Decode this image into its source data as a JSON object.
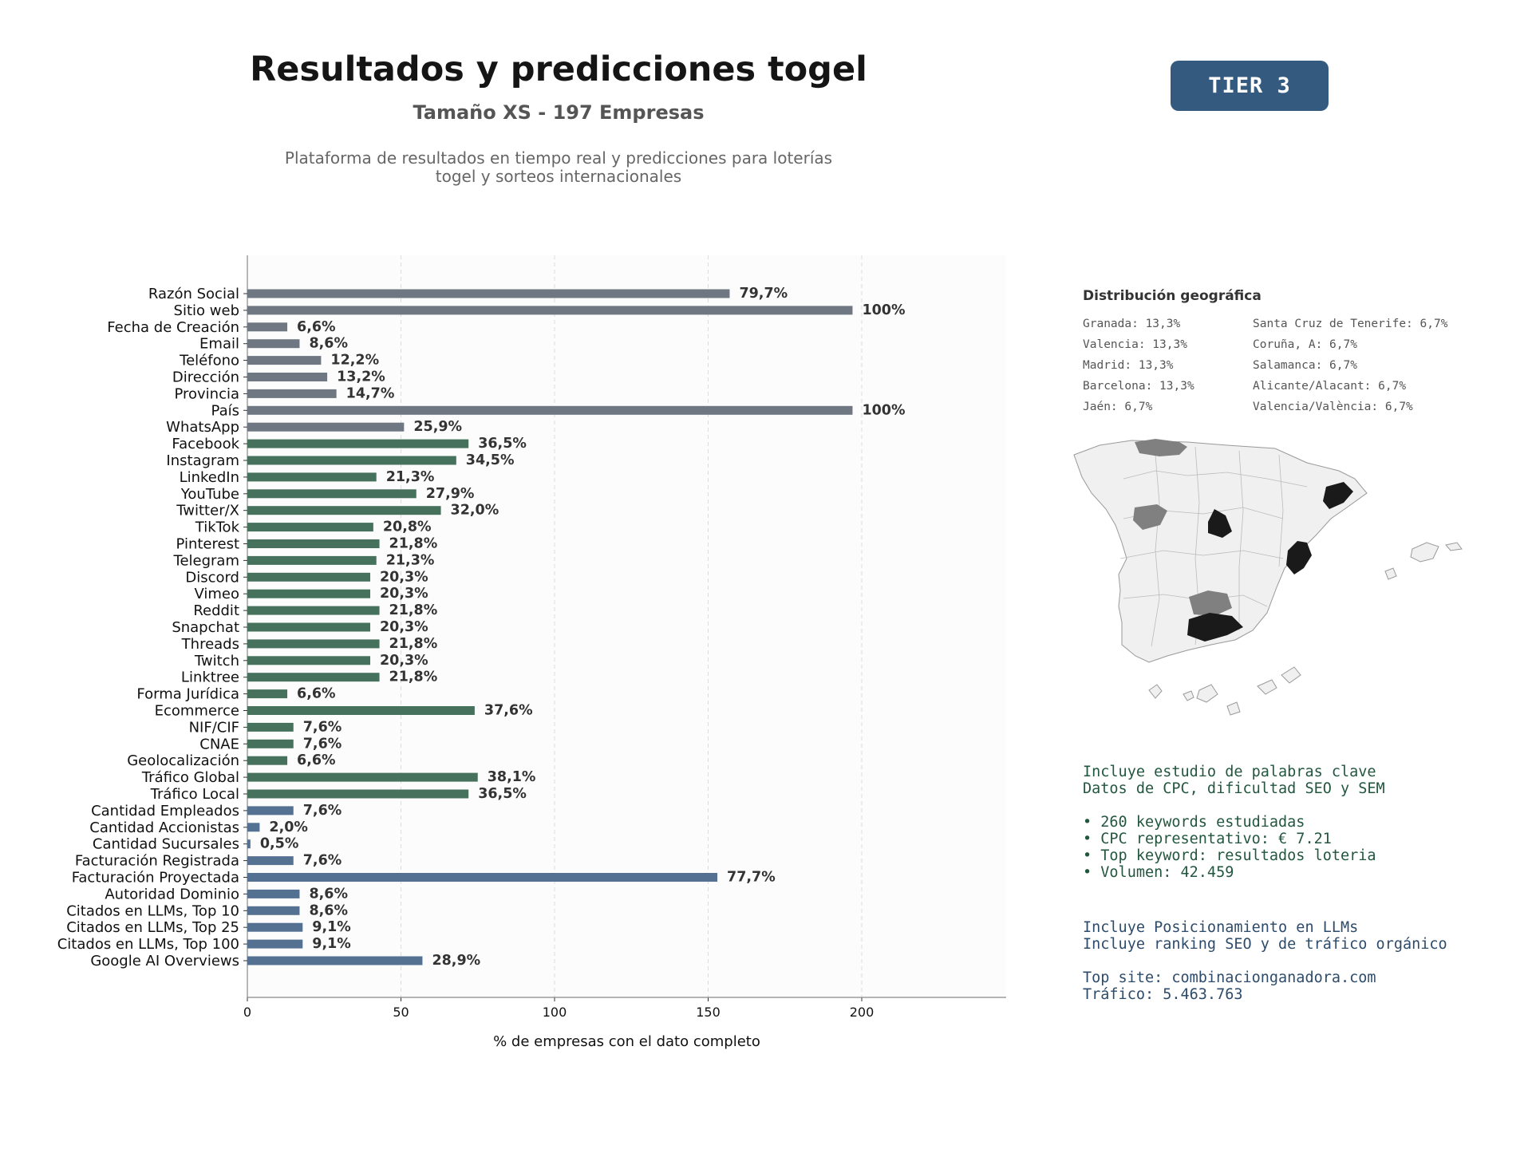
{
  "header": {
    "title": "Resultados y predicciones togel",
    "subtitle": "Tamaño XS - 197 Empresas",
    "description_line1": "Plataforma de resultados en tiempo real y predicciones para loterías",
    "description_line2": "togel y sorteos internacionales",
    "tier": "TIER 3"
  },
  "colors": {
    "basic": "#6e7782",
    "social": "#46715c",
    "business": "#557191",
    "tier_badge": "#355a80",
    "map_high": "#1a1a1a",
    "map_mid": "#808080",
    "map_base": "#f0f0f0"
  },
  "chart_data": {
    "type": "bar",
    "orientation": "horizontal",
    "xlabel": "% de empresas con el dato completo",
    "xlim": [
      0,
      247
    ],
    "xticks": [
      0,
      50,
      100,
      150,
      200
    ],
    "grid": "vertical dashed",
    "categories": [
      "Razón Social",
      "Sitio web",
      "Fecha de Creación",
      "Email",
      "Teléfono",
      "Dirección",
      "Provincia",
      "País",
      "WhatsApp",
      "Facebook",
      "Instagram",
      "LinkedIn",
      "YouTube",
      "Twitter/X",
      "TikTok",
      "Pinterest",
      "Telegram",
      "Discord",
      "Vimeo",
      "Reddit",
      "Snapchat",
      "Threads",
      "Twitch",
      "Linktree",
      "Forma Jurídica",
      "Ecommerce",
      "NIF/CIF",
      "CNAE",
      "Geolocalización",
      "Tráfico Global",
      "Tráfico Local",
      "Cantidad Empleados",
      "Cantidad Accionistas",
      "Cantidad Sucursales",
      "Facturación Registrada",
      "Facturación Proyectada",
      "Autoridad Dominio",
      "Citados en LLMs, Top 10",
      "Citados en LLMs, Top 25",
      "Citados en LLMs, Top 100",
      "Google AI Overviews"
    ],
    "values": [
      157,
      197,
      13,
      17,
      24,
      26,
      29,
      197,
      51,
      72,
      68,
      42,
      55,
      63,
      41,
      43,
      42,
      40,
      40,
      43,
      40,
      43,
      40,
      43,
      13,
      74,
      15,
      15,
      13,
      75,
      72,
      15,
      4,
      1,
      15,
      153,
      17,
      17,
      18,
      18,
      57
    ],
    "labels": [
      "79,7%",
      "100%",
      "6,6%",
      "8,6%",
      "12,2%",
      "13,2%",
      "14,7%",
      "100%",
      "25,9%",
      "36,5%",
      "34,5%",
      "21,3%",
      "27,9%",
      "32,0%",
      "20,8%",
      "21,8%",
      "21,3%",
      "20,3%",
      "20,3%",
      "21,8%",
      "20,3%",
      "21,8%",
      "20,3%",
      "21,8%",
      "6,6%",
      "37,6%",
      "7,6%",
      "7,6%",
      "6,6%",
      "38,1%",
      "36,5%",
      "7,6%",
      "2,0%",
      "0,5%",
      "7,6%",
      "77,7%",
      "8,6%",
      "8,6%",
      "9,1%",
      "9,1%",
      "28,9%"
    ],
    "groups": [
      "basic",
      "basic",
      "basic",
      "basic",
      "basic",
      "basic",
      "basic",
      "basic",
      "basic",
      "social",
      "social",
      "social",
      "social",
      "social",
      "social",
      "social",
      "social",
      "social",
      "social",
      "social",
      "social",
      "social",
      "social",
      "social",
      "social",
      "social",
      "social",
      "social",
      "social",
      "social",
      "social",
      "business",
      "business",
      "business",
      "business",
      "business",
      "business",
      "business",
      "business",
      "business",
      "business"
    ]
  },
  "geo": {
    "title": "Distribución geográfica",
    "items": [
      "Granada: 13,3%",
      "Santa Cruz de Tenerife: 6,7%",
      "Valencia: 13,3%",
      "Coruña, A: 6,7%",
      "Madrid: 13,3%",
      "Salamanca: 6,7%",
      "Barcelona: 13,3%",
      "Alicante/Alacant: 6,7%",
      "Jaén: 6,7%",
      "Valencia/València: 6,7%"
    ]
  },
  "keywords": {
    "line1": "Incluye estudio de palabras clave",
    "line2": "Datos de CPC, dificultad SEO y SEM",
    "bullet1": "• 260 keywords estudiadas",
    "bullet2": "• CPC representativo: € 7.21",
    "bullet3": "• Top keyword: resultados loteria",
    "bullet4": "• Volumen: 42.459"
  },
  "llm": {
    "line1": "Incluye Posicionamiento en LLMs",
    "line2": "Incluye ranking SEO y de tráfico orgánico",
    "top_site": "Top site: combinacionganadora.com",
    "traffic": "Tráfico: 5.463.763"
  }
}
